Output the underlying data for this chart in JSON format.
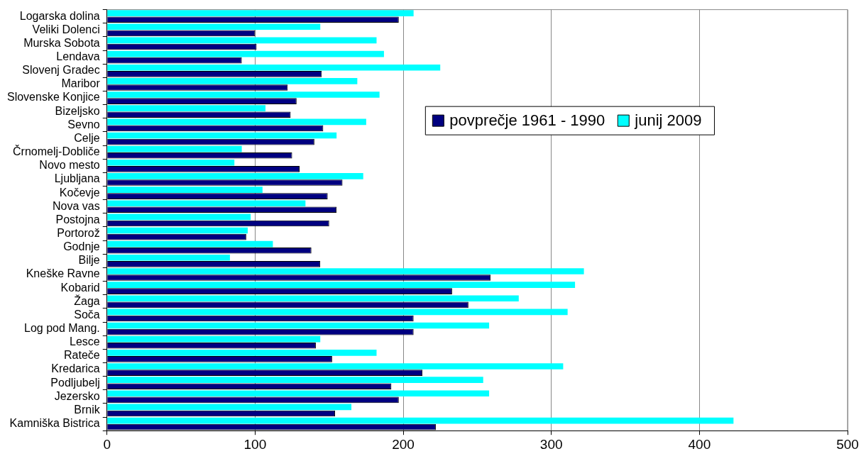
{
  "chart_data": {
    "type": "bar",
    "orientation": "horizontal",
    "categories": [
      "Logarska dolina",
      "Veliki Dolenci",
      "Murska Sobota",
      "Lendava",
      "Slovenj Gradec",
      "Maribor",
      "Slovenske Konjice",
      "Bizeljsko",
      "Sevno",
      "Celje",
      "Črnomelj-Dobliče",
      "Novo mesto",
      "Ljubljana",
      "Kočevje",
      "Nova vas",
      "Postojna",
      "Portorož",
      "Godnje",
      "Bilje",
      "Kneške Ravne",
      "Kobarid",
      "Žaga",
      "Soča",
      "Log pod Mang.",
      "Lesce",
      "Rateče",
      "Kredarica",
      "Podljubelj",
      "Jezersko",
      "Brnik",
      "Kamniška Bistrica"
    ],
    "series": [
      {
        "name": "povprečje 1961 - 1990",
        "color": "#000080",
        "values": [
          197,
          100,
          101,
          91,
          145,
          122,
          128,
          124,
          146,
          140,
          125,
          130,
          159,
          149,
          155,
          150,
          94,
          138,
          144,
          259,
          233,
          244,
          207,
          207,
          141,
          152,
          213,
          192,
          197,
          154,
          222
        ]
      },
      {
        "name": "junij 2009",
        "color": "#00ffff",
        "values": [
          207,
          144,
          182,
          187,
          225,
          169,
          184,
          107,
          175,
          155,
          91,
          86,
          173,
          105,
          134,
          97,
          95,
          112,
          83,
          322,
          316,
          278,
          311,
          258,
          144,
          182,
          308,
          254,
          258,
          165,
          423
        ]
      }
    ],
    "xlim": [
      0,
      500
    ],
    "xticks": [
      0,
      100,
      200,
      300,
      400,
      500
    ],
    "grid": "x",
    "legend": "top right"
  }
}
